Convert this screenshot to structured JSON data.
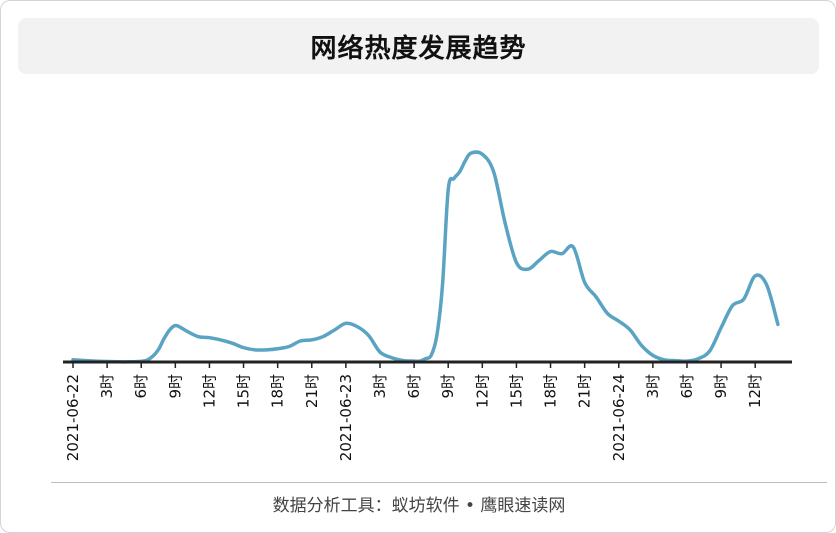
{
  "footer": {
    "source": "数据分析工具：蚁坊软件 • 鹰眼速读网"
  },
  "colors": {
    "line": "#5aa3c3",
    "axis": "#222222",
    "text": "#111111"
  },
  "chart_data": {
    "type": "line",
    "title": "网络热度发展趋势",
    "xlabel": "",
    "ylabel": "",
    "y_axis_visible": false,
    "grid": false,
    "legend": "none",
    "tick_labels": [
      {
        "hour": 0,
        "label": "2021-06-22"
      },
      {
        "hour": 3,
        "label": "3时"
      },
      {
        "hour": 6,
        "label": "6时"
      },
      {
        "hour": 9,
        "label": "9时"
      },
      {
        "hour": 12,
        "label": "12时"
      },
      {
        "hour": 15,
        "label": "15时"
      },
      {
        "hour": 18,
        "label": "18时"
      },
      {
        "hour": 21,
        "label": "21时"
      },
      {
        "hour": 24,
        "label": "2021-06-23"
      },
      {
        "hour": 27,
        "label": "3时"
      },
      {
        "hour": 30,
        "label": "6时"
      },
      {
        "hour": 33,
        "label": "9时"
      },
      {
        "hour": 36,
        "label": "12时"
      },
      {
        "hour": 39,
        "label": "15时"
      },
      {
        "hour": 42,
        "label": "18时"
      },
      {
        "hour": 45,
        "label": "21时"
      },
      {
        "hour": 48,
        "label": "2021-06-24"
      },
      {
        "hour": 51,
        "label": "3时"
      },
      {
        "hour": 54,
        "label": "6时"
      },
      {
        "hour": 57,
        "label": "9时"
      },
      {
        "hour": 60,
        "label": "12时"
      }
    ],
    "xlim": [
      0,
      62.5
    ],
    "ylim": [
      0,
      100
    ],
    "series": [
      {
        "x": [
          0,
          1,
          2,
          3,
          4,
          5,
          6,
          6.5,
          7,
          7.5,
          8,
          8.5,
          9,
          9.5,
          10,
          11,
          12,
          13,
          14,
          15,
          16,
          17,
          18,
          19,
          20,
          21,
          22,
          23,
          24,
          25,
          26,
          27,
          28,
          29,
          30,
          30.5,
          31,
          31.5,
          32,
          32.5,
          33,
          33.5,
          34,
          34.5,
          35,
          36,
          37,
          38,
          39,
          40,
          41,
          42,
          43,
          44,
          45,
          46,
          47,
          48,
          49,
          50,
          51,
          52,
          53,
          54,
          55,
          56,
          57,
          58,
          59,
          60,
          61,
          62
        ],
        "y": [
          1,
          0.7,
          0.4,
          0.2,
          0.1,
          0.1,
          0.3,
          0.8,
          2.5,
          5.5,
          10.5,
          14.5,
          16.5,
          15.5,
          14,
          11.5,
          11,
          10,
          8.5,
          6.5,
          5.5,
          5.5,
          6,
          7,
          9.5,
          10,
          11.5,
          14.5,
          17.5,
          16,
          12,
          4.5,
          2,
          0.7,
          0.4,
          0.4,
          1.5,
          3,
          12,
          35,
          78,
          83,
          86,
          91,
          94.5,
          94,
          86,
          63,
          45,
          42,
          46,
          50,
          49,
          52,
          36,
          29.5,
          22,
          18.5,
          14.5,
          7.5,
          3,
          1,
          0.6,
          0.4,
          1.5,
          5,
          15.5,
          25.5,
          28.5,
          39,
          35,
          17
        ]
      }
    ]
  }
}
